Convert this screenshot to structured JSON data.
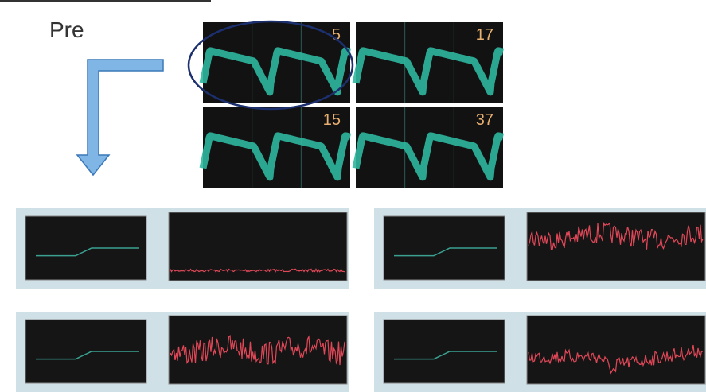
{
  "label": "Pre",
  "panels": [
    {
      "label": "5"
    },
    {
      "label": "17"
    },
    {
      "label": "15"
    },
    {
      "label": "37"
    }
  ]
}
